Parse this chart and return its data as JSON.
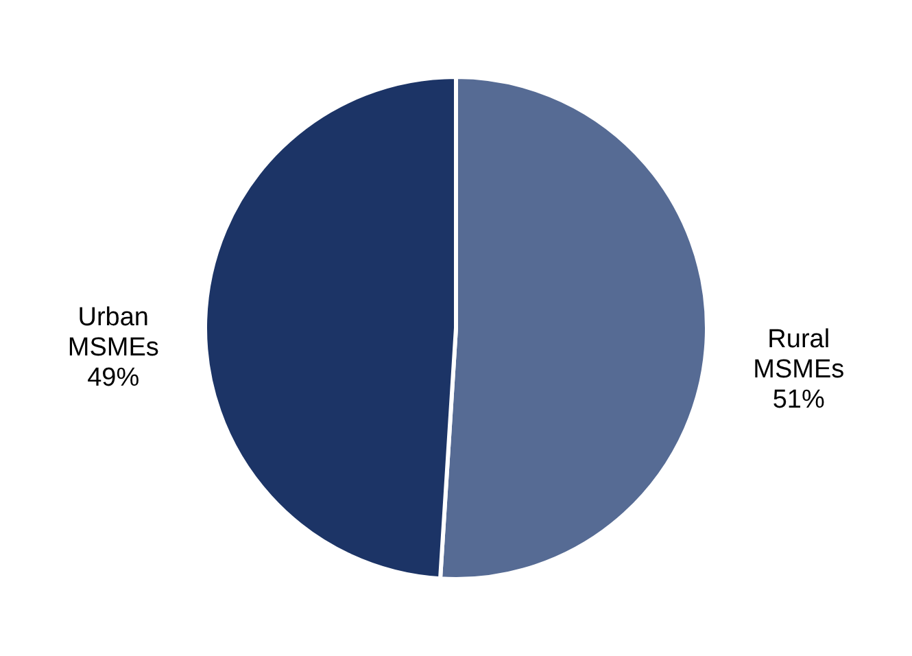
{
  "chart_data": {
    "type": "pie",
    "categories": [
      "Rural MSMEs",
      "Urban MSMEs"
    ],
    "values": [
      51,
      49
    ],
    "colors": [
      "#566b94",
      "#1c3466"
    ],
    "value_labels": [
      "51%",
      "49%"
    ]
  }
}
